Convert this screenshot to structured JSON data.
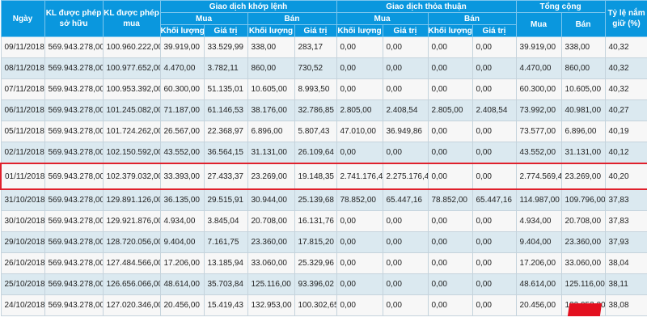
{
  "header": {
    "date": "Ngày",
    "kl_sohuu": "KL được phép sở hữu",
    "kl_mua": "KL được phép mua",
    "khoplenh": "Giao dịch khớp lệnh",
    "thoathuan": "Giao dịch thỏa thuận",
    "tongcong": "Tổng cộng",
    "tyle": "Tỷ lệ nắm giữ (%)",
    "mua": "Mua",
    "ban": "Bán",
    "khoiluong": "Khối lượng",
    "giatri": "Giá trị"
  },
  "rows": [
    [
      "09/11/2018",
      "569.943.278,00",
      "100.960.222,00",
      "39.919,00",
      "33.529,99",
      "338,00",
      "283,17",
      "0,00",
      "0,00",
      "0,00",
      "0,00",
      "39.919,00",
      "338,00",
      "40,32"
    ],
    [
      "08/11/2018",
      "569.943.278,00",
      "100.977.652,00",
      "4.470,00",
      "3.782,11",
      "860,00",
      "730,52",
      "0,00",
      "0,00",
      "0,00",
      "0,00",
      "4.470,00",
      "860,00",
      "40,32"
    ],
    [
      "07/11/2018",
      "569.943.278,00",
      "100.953.392,00",
      "60.300,00",
      "51.135,01",
      "10.605,00",
      "8.993,50",
      "0,00",
      "0,00",
      "0,00",
      "0,00",
      "60.300,00",
      "10.605,00",
      "40,32"
    ],
    [
      "06/11/2018",
      "569.943.278,00",
      "101.245.082,00",
      "71.187,00",
      "61.146,53",
      "38.176,00",
      "32.786,85",
      "2.805,00",
      "2.408,54",
      "2.805,00",
      "2.408,54",
      "73.992,00",
      "40.981,00",
      "40,27"
    ],
    [
      "05/11/2018",
      "569.943.278,00",
      "101.724.262,00",
      "26.567,00",
      "22.368,97",
      "6.896,00",
      "5.807,43",
      "47.010,00",
      "36.949,86",
      "0,00",
      "0,00",
      "73.577,00",
      "6.896,00",
      "40,19"
    ],
    [
      "02/11/2018",
      "569.943.278,00",
      "102.150.592,00",
      "43.552,00",
      "36.564,15",
      "31.131,00",
      "26.109,64",
      "0,00",
      "0,00",
      "0,00",
      "0,00",
      "43.552,00",
      "31.131,00",
      "40,12"
    ],
    [
      "01/11/2018",
      "569.943.278,00",
      "102.379.032,00",
      "33.393,00",
      "27.433,37",
      "23.269,00",
      "19.148,35",
      "2.741.176,40",
      "2.275.176,41",
      "0,00",
      "0,00",
      "2.774.569,40",
      "23.269,00",
      "40,20"
    ],
    [
      "31/10/2018",
      "569.943.278,00",
      "129.891.126,00",
      "36.135,00",
      "29.515,91",
      "30.944,00",
      "25.139,68",
      "78.852,00",
      "65.447,16",
      "78.852,00",
      "65.447,16",
      "114.987,00",
      "109.796,00",
      "37,83"
    ],
    [
      "30/10/2018",
      "569.943.278,00",
      "129.921.876,00",
      "4.934,00",
      "3.845,04",
      "20.708,00",
      "16.131,76",
      "0,00",
      "0,00",
      "0,00",
      "0,00",
      "4.934,00",
      "20.708,00",
      "37,83"
    ],
    [
      "29/10/2018",
      "569.943.278,00",
      "128.720.056,00",
      "9.404,00",
      "7.161,75",
      "23.360,00",
      "17.815,20",
      "0,00",
      "0,00",
      "0,00",
      "0,00",
      "9.404,00",
      "23.360,00",
      "37,93"
    ],
    [
      "26/10/2018",
      "569.943.278,00",
      "127.484.566,00",
      "17.206,00",
      "13.185,94",
      "33.060,00",
      "25.329,96",
      "0,00",
      "0,00",
      "0,00",
      "0,00",
      "17.206,00",
      "33.060,00",
      "38,04"
    ],
    [
      "25/10/2018",
      "569.943.278,00",
      "126.656.066,00",
      "48.614,00",
      "35.703,84",
      "125.116,00",
      "93.396,02",
      "0,00",
      "0,00",
      "0,00",
      "0,00",
      "48.614,00",
      "125.116,00",
      "38,11"
    ],
    [
      "24/10/2018",
      "569.943.278,00",
      "127.020.346,00",
      "20.456,00",
      "15.419,43",
      "132.953,00",
      "100.302,65",
      "0,00",
      "0,00",
      "0,00",
      "0,00",
      "20.456,00",
      "132.953,00",
      "38,08"
    ]
  ],
  "highlighted_row": "01/11/2018",
  "logo": "VIET",
  "colors": {
    "header": "#0a97de",
    "highlight": "#e0202c",
    "row_alt": "#dbe9f0"
  }
}
